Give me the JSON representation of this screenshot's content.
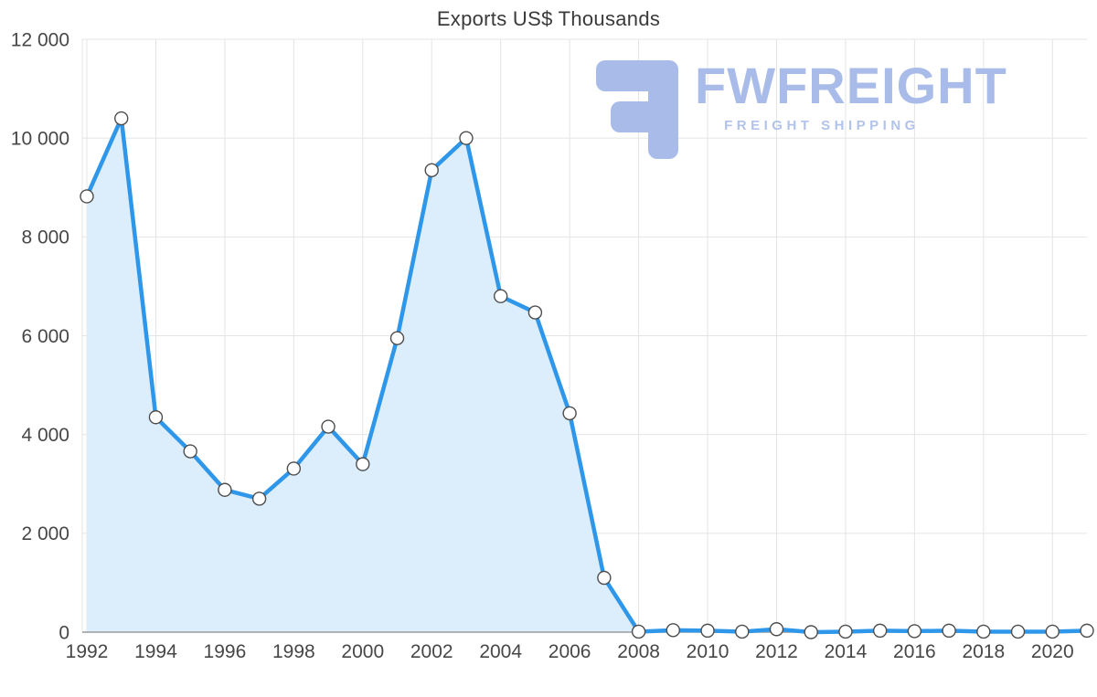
{
  "watermark": {
    "name": "FWFREIGHT",
    "tagline": "FREIGHT SHIPPING",
    "color": "#a9bbe8",
    "tagline_color": "#b2c3eb"
  },
  "chart_data": {
    "type": "area",
    "title": "Exports US$ Thousands",
    "x": [
      1992,
      1993,
      1994,
      1995,
      1996,
      1997,
      1998,
      1999,
      2000,
      2001,
      2002,
      2003,
      2004,
      2005,
      2006,
      2007,
      2008,
      2009,
      2010,
      2011,
      2012,
      2013,
      2014,
      2015,
      2016,
      2017,
      2018,
      2019,
      2020,
      2021
    ],
    "values": [
      8820,
      10400,
      4350,
      3660,
      2880,
      2700,
      3310,
      4160,
      3400,
      5950,
      9350,
      10000,
      6800,
      6470,
      4430,
      1100,
      10,
      40,
      30,
      10,
      60,
      0,
      10,
      30,
      20,
      30,
      10,
      10,
      10,
      30
    ],
    "ylim": [
      0,
      12000
    ],
    "y_ticks": [
      0,
      2000,
      4000,
      6000,
      8000,
      10000,
      12000
    ],
    "y_tick_labels": [
      "0",
      "2 000",
      "4 000",
      "6 000",
      "8 000",
      "10 000",
      "12 000"
    ],
    "x_ticks": [
      1992,
      1994,
      1996,
      1998,
      2000,
      2002,
      2004,
      2006,
      2008,
      2010,
      2012,
      2014,
      2016,
      2018,
      2020
    ],
    "grid": true,
    "legend": false,
    "line_color": "#2e97e9",
    "fill_color": "#dcedfb",
    "marker_fill": "#ffffff",
    "marker_stroke": "#4d4d4d",
    "grid_color": "#e4e4e4",
    "axis_color": "#9c9c9c",
    "tick_color": "#474747"
  }
}
